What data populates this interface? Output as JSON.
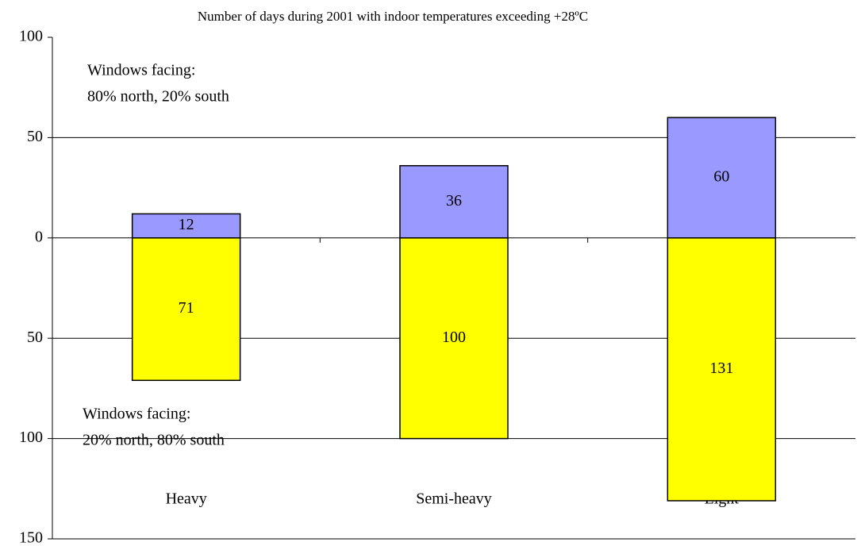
{
  "chart_data": {
    "type": "bar",
    "title": "Number of days during 2001 with indoor temperatures exceeding +28ºC",
    "categories": [
      "Heavy",
      "Semi-heavy",
      "Light"
    ],
    "series": [
      {
        "color": "#9999ff",
        "values": [
          12,
          36,
          60
        ]
      },
      {
        "color": "#ffff00",
        "values": [
          -71,
          -100,
          -131
        ],
        "value_labels": [
          "71",
          "100",
          "131"
        ]
      }
    ],
    "annotations": [
      [
        "Windows facing:",
        "80% north, 20% south"
      ],
      [
        "Windows facing:",
        "20% north, 80% south"
      ]
    ],
    "ylim": [
      -150,
      100
    ],
    "yticks": [
      {
        "value": -150,
        "label": "150"
      },
      {
        "value": -100,
        "label": "100"
      },
      {
        "value": -50,
        "label": "50"
      },
      0,
      50,
      100
    ],
    "grid": true
  }
}
